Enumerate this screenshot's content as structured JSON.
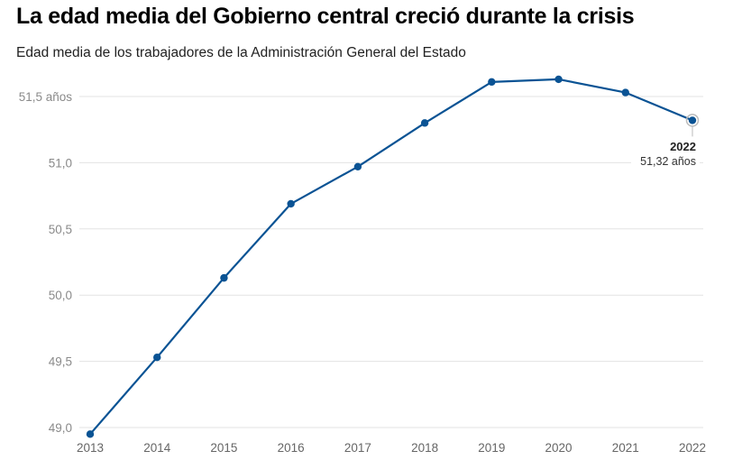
{
  "header": {
    "title": "La edad media del Gobierno central creció durante la crisis",
    "subtitle": "Edad media de los trabajadores de la Administración General del Estado"
  },
  "chart_data": {
    "type": "line",
    "title": "La edad media del Gobierno central creció durante la crisis",
    "subtitle": "Edad media de los trabajadores de la Administración General del Estado",
    "xlabel": "",
    "ylabel": "",
    "categories": [
      "2013",
      "2014",
      "2015",
      "2016",
      "2017",
      "2018",
      "2019",
      "2020",
      "2021",
      "2022"
    ],
    "series": [
      {
        "name": "Edad media",
        "color": "#0a5394",
        "values": [
          48.95,
          49.53,
          50.13,
          50.69,
          50.97,
          51.3,
          51.61,
          51.63,
          51.53,
          51.32
        ]
      }
    ],
    "ylim": [
      49.0,
      51.7
    ],
    "yticks": [
      {
        "value": 49.0,
        "label": "49,0"
      },
      {
        "value": 49.5,
        "label": "49,5"
      },
      {
        "value": 50.0,
        "label": "50,0"
      },
      {
        "value": 50.5,
        "label": "50,5"
      },
      {
        "value": 51.0,
        "label": "51,0"
      },
      {
        "value": 51.5,
        "label": "51,5 años"
      }
    ],
    "grid": true,
    "legend": "none",
    "annotation": {
      "category": "2022",
      "title": "2022",
      "label": "51,32 años"
    }
  }
}
